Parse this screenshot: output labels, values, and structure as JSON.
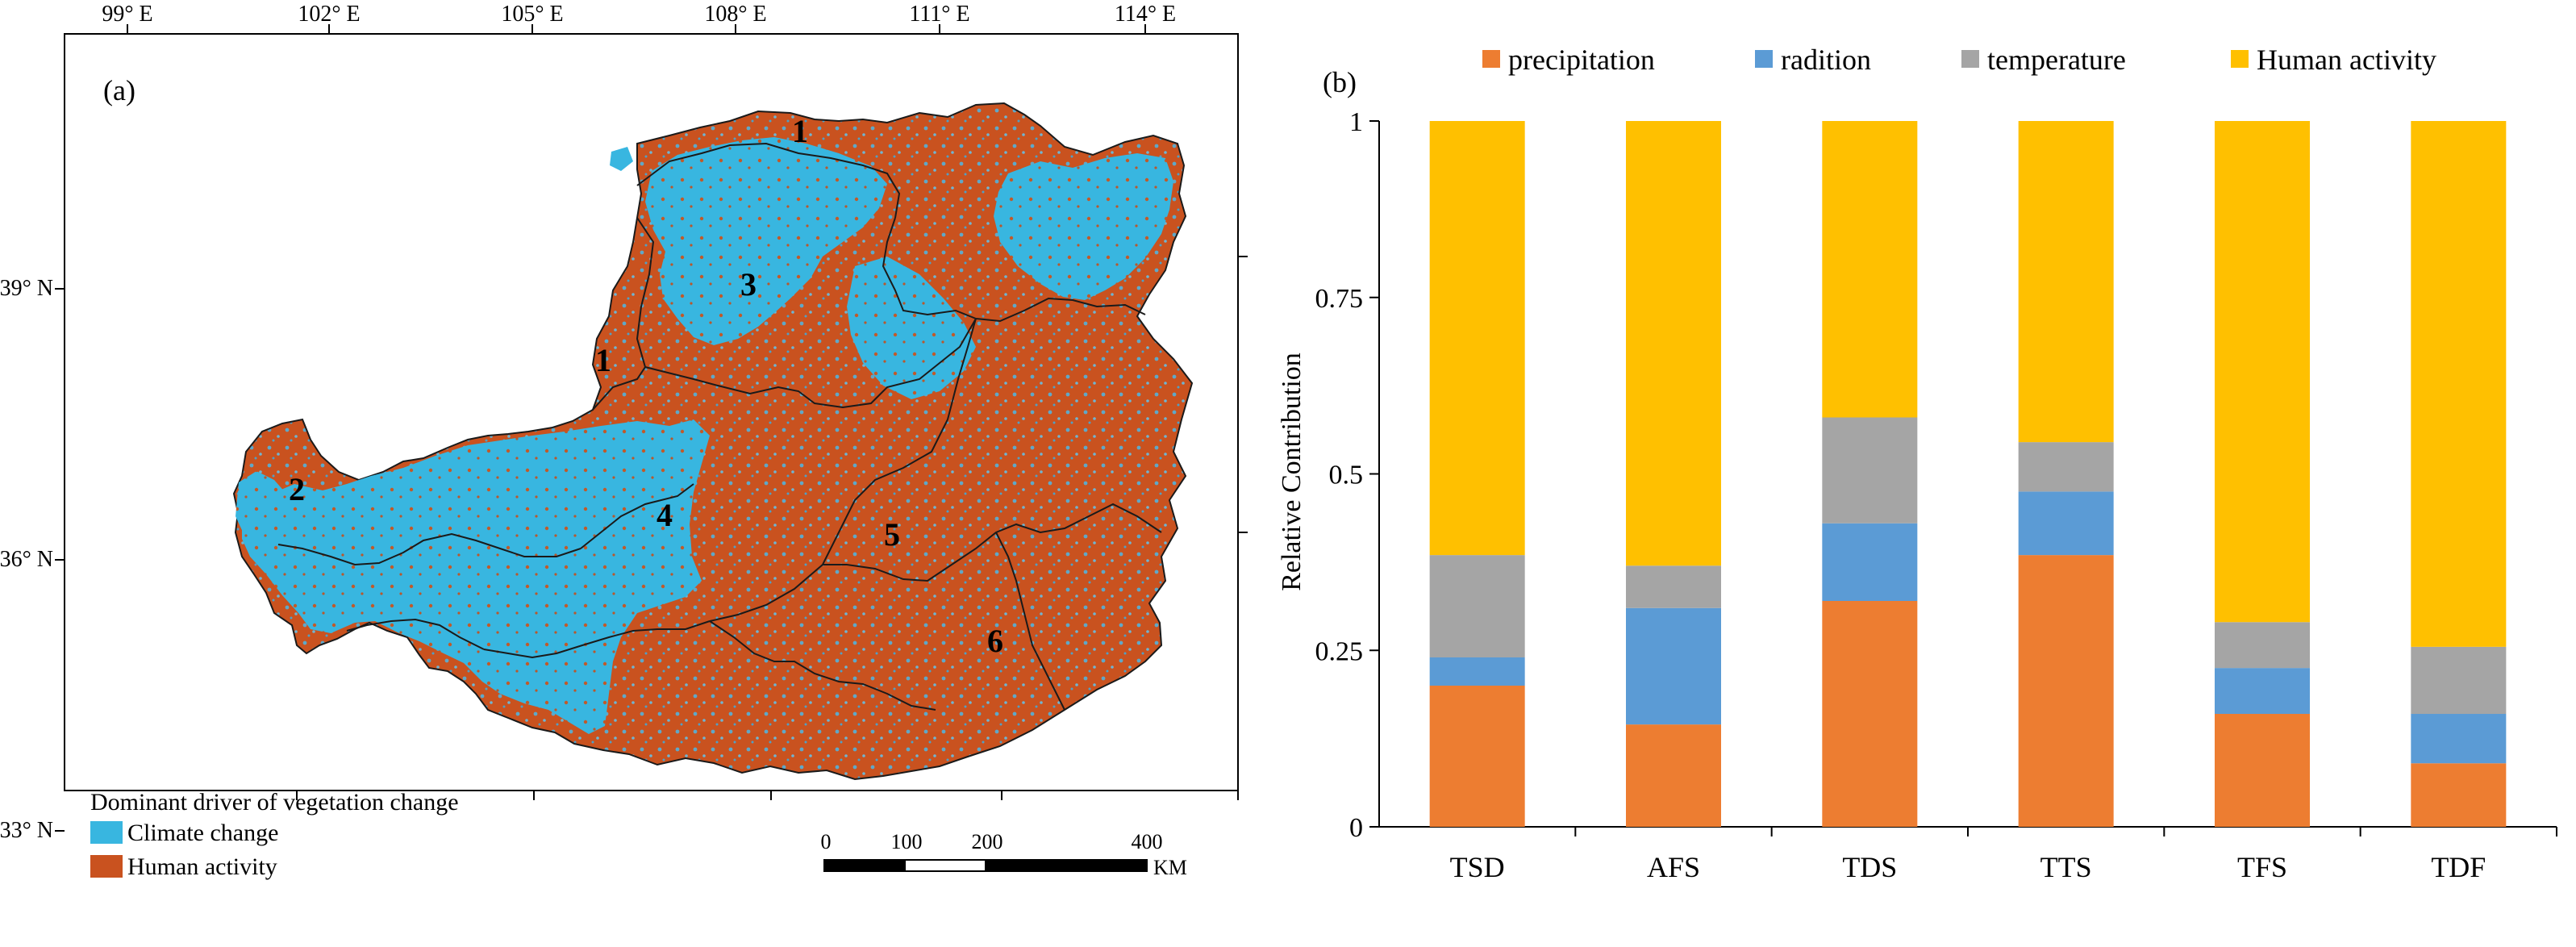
{
  "colors": {
    "climate": "#38b6e0",
    "human": "#c9521f",
    "precipitation": "#ed7d31",
    "radiation": "#5b9bd5",
    "temperature": "#a5a5a5",
    "human_activity": "#ffc000"
  },
  "map": {
    "panel_label": "(a)",
    "lon_labels": [
      "99° E",
      "102° E",
      "105° E",
      "108° E",
      "111° E",
      "114° E"
    ],
    "lat_labels": [
      "39° N",
      "36° N",
      "33° N"
    ],
    "region_labels": [
      "1",
      "1",
      "2",
      "3",
      "4",
      "5",
      "6"
    ],
    "legend_title": "Dominant driver of vegetation change",
    "legend_items": [
      "Climate change",
      "Human activity"
    ],
    "scale_ticks": [
      "0",
      "100",
      "200",
      "400"
    ],
    "scale_unit": "KM"
  },
  "chart_data": {
    "type": "bar",
    "stacked": true,
    "panel_label": "(b)",
    "title": "",
    "xlabel": "",
    "ylabel": "Relative Contribution",
    "categories": [
      "TSD",
      "AFS",
      "TDS",
      "TTS",
      "TFS",
      "TDF"
    ],
    "series": [
      {
        "name": "precipitation",
        "values": [
          0.2,
          0.145,
          0.32,
          0.385,
          0.16,
          0.09
        ]
      },
      {
        "name": "radition",
        "values": [
          0.04,
          0.165,
          0.11,
          0.09,
          0.065,
          0.07
        ]
      },
      {
        "name": "temperature",
        "values": [
          0.145,
          0.06,
          0.15,
          0.07,
          0.065,
          0.095
        ]
      },
      {
        "name": "Human activity",
        "values": [
          0.615,
          0.63,
          0.42,
          0.455,
          0.71,
          0.745
        ]
      }
    ],
    "ylim": [
      0,
      1
    ],
    "yticks": [
      "0",
      "0.25",
      "0.5",
      "0.75",
      "1"
    ],
    "legend_position": "top",
    "grid": false
  }
}
